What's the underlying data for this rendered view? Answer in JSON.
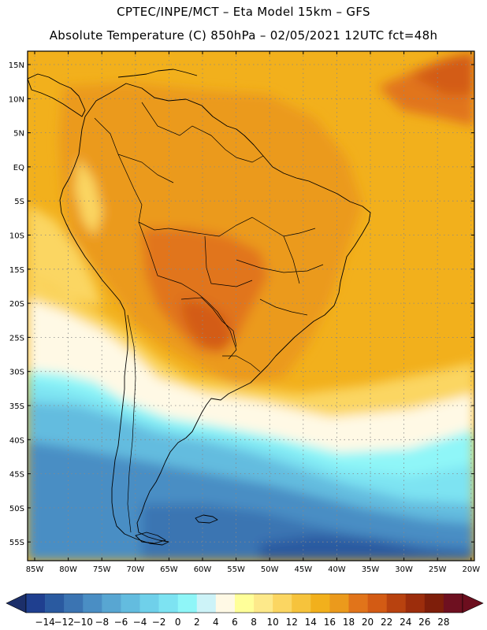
{
  "header": {
    "line1": "CPTEC/INPE/MCT –  Eta Model 15km – GFS",
    "line2": "Absolute Temperature (C) 850hPa – 02/05/2021 12UTC fct=48h"
  },
  "map": {
    "lat_labels": [
      "15N",
      "10N",
      "5N",
      "EQ",
      "5S",
      "10S",
      "15S",
      "20S",
      "25S",
      "30S",
      "35S",
      "40S",
      "45S",
      "50S",
      "55S"
    ],
    "lon_labels": [
      "85W",
      "80W",
      "75W",
      "70W",
      "65W",
      "60W",
      "55W",
      "50W",
      "45W",
      "40W",
      "35W",
      "30W",
      "25W",
      "20W"
    ],
    "field": "temperature-850hPa"
  },
  "colorbar": {
    "labels": [
      "-14",
      "-12",
      "-10",
      "-8",
      "-6",
      "-4",
      "-2",
      "0",
      "2",
      "4",
      "6",
      "8",
      "10",
      "12",
      "14",
      "16",
      "18",
      "20",
      "22",
      "24",
      "26",
      "28"
    ],
    "colors": [
      "#1f3f8f",
      "#2a5aa0",
      "#3b74b2",
      "#4a8ec4",
      "#58a6d2",
      "#63bcdf",
      "#6fd0ea",
      "#7de3f2",
      "#8ff6f8",
      "#cdf3f8",
      "#fff9e5",
      "#ffff99",
      "#fde98a",
      "#fbd662",
      "#f6c33c",
      "#f2b01c",
      "#eb9a1c",
      "#e1741a",
      "#d35b14",
      "#b8420f",
      "#9c2d0c",
      "#7e1e0a",
      "#6e1020"
    ],
    "low_arrow": "#1c2f6a",
    "high_arrow": "#6c0e1e"
  }
}
